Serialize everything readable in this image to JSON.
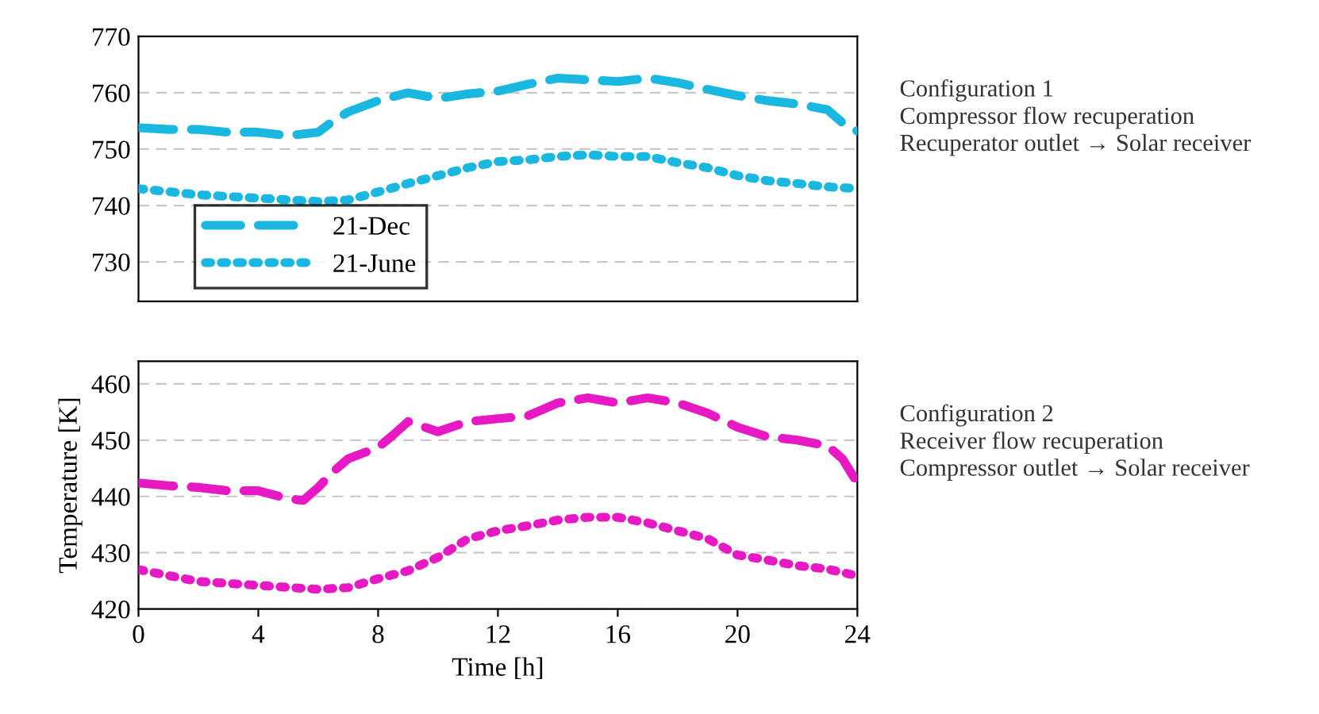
{
  "chart_data": [
    {
      "type": "line",
      "ylim": [
        723,
        770
      ],
      "yticks": [
        730,
        740,
        750,
        760,
        770
      ],
      "xlim": [
        0,
        24
      ],
      "tick_labels": "y",
      "grid": "y",
      "legend": "bottom left",
      "marker": "none",
      "annotations": [
        "Configuration 1\nCompressor flow recuperation\nRecuperator outlet → Solar receiver"
      ],
      "series": [
        {
          "name": "21-Dec",
          "color": "#1ab8e0",
          "line_style": "dashed",
          "x": [
            0,
            1,
            2,
            3,
            4,
            5,
            6,
            6.5,
            7,
            8,
            9,
            10,
            11,
            12,
            13,
            14,
            15,
            16,
            17,
            18,
            19,
            20,
            21,
            22,
            23,
            23.5,
            24
          ],
          "values": [
            753.8,
            753.5,
            753.5,
            753,
            753,
            752.4,
            753,
            755,
            756.6,
            758.6,
            760,
            759,
            759.8,
            760.3,
            761.5,
            762.6,
            762.3,
            762,
            762.6,
            761.8,
            760.6,
            759.5,
            758.6,
            758,
            757,
            754.7,
            753.2
          ]
        },
        {
          "name": "21-June",
          "color": "#1ab8e0",
          "line_style": "dotted",
          "x": [
            0,
            2,
            4,
            6,
            7,
            8,
            9,
            10,
            11,
            12,
            13,
            14,
            15,
            16,
            17,
            18,
            19,
            20,
            21,
            22,
            23,
            24
          ],
          "values": [
            743,
            741.9,
            741.3,
            740.7,
            741,
            742.4,
            743.9,
            745.3,
            746.7,
            747.8,
            748.1,
            748.7,
            749,
            748.7,
            748.7,
            747.6,
            746.7,
            745.3,
            744.4,
            743.9,
            743.3,
            743
          ]
        }
      ]
    },
    {
      "type": "line",
      "ylim": [
        420,
        464
      ],
      "yticks": [
        420,
        430,
        440,
        450,
        460
      ],
      "xlim": [
        0,
        24
      ],
      "xticks": [
        0,
        4,
        8,
        12,
        16,
        20,
        24
      ],
      "grid": "y",
      "marker": "none",
      "xlabel": "Time [h]",
      "ylabel": "Temperature [K]",
      "annotations": [
        "Configuration 2\nReceiver flow recuperation\nCompressor outlet → Solar receiver"
      ],
      "series": [
        {
          "color": "#e619c4",
          "line_style": "dashed",
          "x": [
            0,
            1,
            2,
            3,
            4,
            5,
            5.5,
            6,
            6.5,
            7,
            8,
            8.5,
            9,
            10,
            11,
            12,
            13,
            14,
            15,
            16,
            17,
            18,
            19,
            20,
            21,
            22,
            23,
            23.5,
            24
          ],
          "values": [
            442.4,
            441.9,
            441.6,
            441,
            441,
            439.6,
            439.3,
            441.6,
            444.4,
            446.7,
            448.7,
            450.9,
            453.3,
            451.5,
            453.3,
            453.8,
            454.3,
            456.6,
            457.5,
            456.6,
            457.5,
            456.6,
            454.8,
            452.3,
            450.6,
            450,
            449,
            446.7,
            442.4
          ]
        },
        {
          "color": "#e619c4",
          "line_style": "dotted",
          "x": [
            0,
            2,
            4,
            6,
            7,
            8,
            9,
            10,
            11,
            12,
            13,
            14,
            15,
            16,
            17,
            18,
            19,
            20,
            21,
            22,
            23,
            24
          ],
          "values": [
            427,
            424.9,
            424.2,
            423.5,
            423.8,
            425.4,
            426.8,
            429.2,
            432.5,
            433.9,
            434.8,
            435.8,
            436.3,
            436.3,
            435.3,
            433.9,
            432.5,
            429.6,
            428.7,
            427.7,
            427.1,
            425.9
          ]
        }
      ]
    }
  ]
}
